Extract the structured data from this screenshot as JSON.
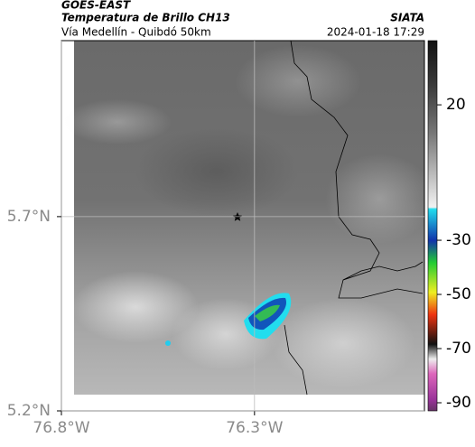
{
  "header": {
    "title": "GOES-EAST",
    "subtitle": "Temperatura de Brillo CH13",
    "location": "Vía Medellín - Quibdó 50km",
    "source": "SIATA",
    "datetime": "2024-01-18 17:29"
  },
  "map": {
    "xlim": [
      -76.8,
      -75.86
    ],
    "ylim": [
      5.2,
      6.153
    ],
    "xticks": [
      {
        "value": -76.8,
        "label": "76.8°W"
      },
      {
        "value": -76.3,
        "label": "76.3°W"
      }
    ],
    "yticks": [
      {
        "value": 5.7,
        "label": "5.7°N"
      },
      {
        "value": 5.2,
        "label": "5.2°N"
      }
    ]
  },
  "colorbar": {
    "lim": [
      -93,
      43.7
    ],
    "ticks": [
      20,
      -30,
      -50,
      -70,
      -90
    ]
  }
}
